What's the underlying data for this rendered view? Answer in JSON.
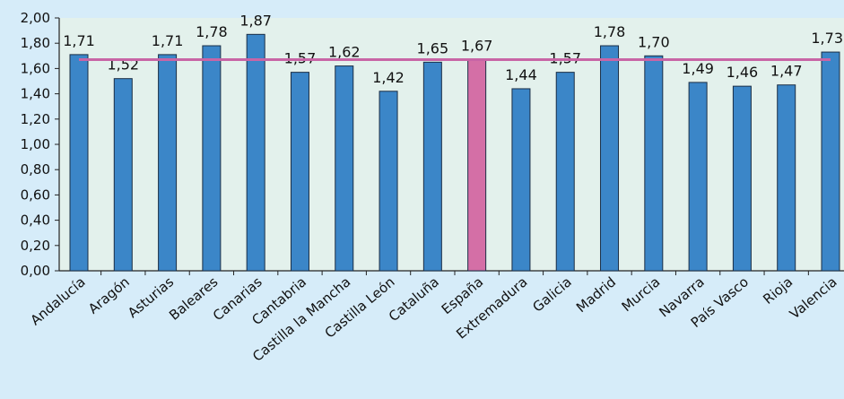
{
  "chart_data": {
    "type": "bar",
    "title": "",
    "xlabel": "",
    "ylabel": "",
    "ylim": [
      0,
      2
    ],
    "ytick_step": 0.2,
    "decimal_separator": ",",
    "grid": false,
    "categories": [
      "Andalucía",
      "Aragón",
      "Asturias",
      "Baleares",
      "Canarias",
      "Cantabria",
      "Castilla la Mancha",
      "Castilla León",
      "Cataluña",
      "España",
      "Extremadura",
      "Galicia",
      "Madrid",
      "Murcia",
      "Navarra",
      "País Vasco",
      "Rioja",
      "Valencia"
    ],
    "values": [
      1.71,
      1.52,
      1.71,
      1.78,
      1.87,
      1.57,
      1.62,
      1.42,
      1.65,
      1.67,
      1.44,
      1.57,
      1.78,
      1.7,
      1.49,
      1.46,
      1.47,
      1.73
    ],
    "reference_line": {
      "value": 1.67
    },
    "highlight_category": "España",
    "colors": {
      "bar": "#3b86c8",
      "highlight_bar": "#d46fa6",
      "reference_line": "#c865a6",
      "plot_bg": "#e3f1ec",
      "page_bg": "#d6ecf9"
    }
  }
}
